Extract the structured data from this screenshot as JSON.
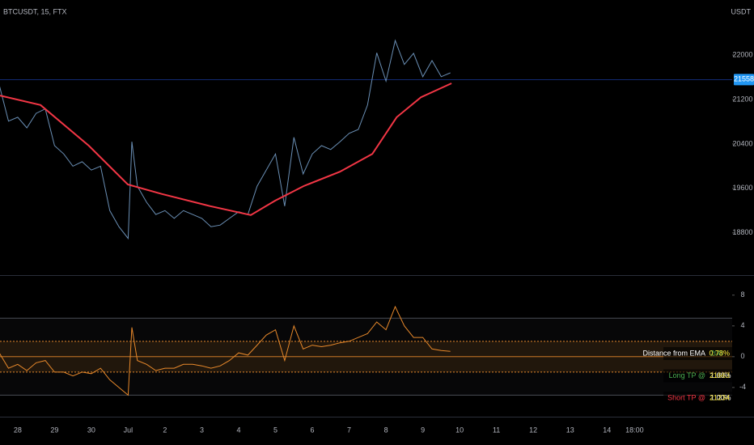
{
  "chart_data": [
    {
      "type": "line",
      "title": "BTCUSDT, 15, FTX",
      "y_axis_label": "USDT",
      "xlim": [
        -0.48,
        19.4
      ],
      "xticks": [
        {
          "value": 0,
          "label": "28"
        },
        {
          "value": 1,
          "label": "29"
        },
        {
          "value": 2,
          "label": "30"
        },
        {
          "value": 3,
          "label": "Jul"
        },
        {
          "value": 4,
          "label": "2"
        },
        {
          "value": 5,
          "label": "3"
        },
        {
          "value": 6,
          "label": "4"
        },
        {
          "value": 7,
          "label": "5"
        },
        {
          "value": 8,
          "label": "6"
        },
        {
          "value": 9,
          "label": "7"
        },
        {
          "value": 10,
          "label": "8"
        },
        {
          "value": 11,
          "label": "9"
        },
        {
          "value": 12,
          "label": "10"
        },
        {
          "value": 13,
          "label": "11"
        },
        {
          "value": 14,
          "label": "12"
        },
        {
          "value": 15,
          "label": "13"
        },
        {
          "value": 16,
          "label": "14"
        },
        {
          "value": 16.75,
          "label": "18:00"
        }
      ],
      "ylim": [
        18040,
        22990
      ],
      "yticks": [
        22000,
        21200,
        20400,
        19600,
        18800
      ],
      "last_price": 21558,
      "series": [
        {
          "color": "#6a8fb5",
          "x": [
            -0.5,
            -0.25,
            0,
            0.25,
            0.5,
            0.75,
            1,
            1.25,
            1.5,
            1.75,
            2,
            2.25,
            2.5,
            2.75,
            3,
            3.1,
            3.25,
            3.5,
            3.75,
            4,
            4.25,
            4.5,
            4.75,
            5,
            5.25,
            5.5,
            5.75,
            6,
            6.25,
            6.5,
            6.75,
            7,
            7.25,
            7.5,
            7.75,
            8,
            8.25,
            8.5,
            8.75,
            9,
            9.25,
            9.5,
            9.75,
            10,
            10.25,
            10.5,
            10.75,
            11,
            11.25,
            11.5,
            11.75
          ],
          "values": [
            21460,
            20810,
            20880,
            20690,
            20950,
            21030,
            20370,
            20220,
            20000,
            20080,
            19930,
            20000,
            19200,
            18910,
            18700,
            20440,
            19640,
            19350,
            19130,
            19200,
            19060,
            19200,
            19130,
            19060,
            18910,
            18940,
            19060,
            19180,
            19130,
            19640,
            19930,
            20220,
            19280,
            20520,
            19860,
            20220,
            20370,
            20300,
            20440,
            20590,
            20660,
            21100,
            22040,
            21530,
            22260,
            21830,
            22030,
            21610,
            21900,
            21610,
            21680
          ]
        },
        {
          "color": "#f23645",
          "x": [
            -0.48,
            0.62,
            1.93,
            2.99,
            3.91,
            5.23,
            6.33,
            6.99,
            7.76,
            8.75,
            9.63,
            10.29,
            10.95,
            11.78
          ],
          "values": [
            21270,
            21100,
            20370,
            19670,
            19500,
            19280,
            19120,
            19380,
            19640,
            19900,
            20220,
            20880,
            21240,
            21490
          ]
        }
      ]
    },
    {
      "type": "line",
      "ylim": [
        -7.8,
        10.5
      ],
      "yticks": [
        8,
        4,
        0,
        -4
      ],
      "bands": [
        5,
        2,
        -2,
        -5
      ],
      "series": [
        {
          "color": "#e8892b",
          "x": [
            -0.5,
            -0.25,
            0,
            0.25,
            0.5,
            0.75,
            1,
            1.25,
            1.5,
            1.75,
            2,
            2.25,
            2.5,
            2.75,
            3,
            3.1,
            3.25,
            3.5,
            3.75,
            4,
            4.25,
            4.5,
            4.75,
            5,
            5.25,
            5.5,
            5.75,
            6,
            6.25,
            6.5,
            6.75,
            7,
            7.25,
            7.5,
            7.75,
            8,
            8.25,
            8.5,
            8.75,
            9,
            9.25,
            9.5,
            9.75,
            10,
            10.25,
            10.5,
            10.75,
            11,
            11.25,
            11.5,
            11.75
          ],
          "values": [
            0.5,
            -1.5,
            -1,
            -1.8,
            -0.8,
            -0.5,
            -2,
            -2,
            -2.5,
            -2,
            -2.2,
            -1.5,
            -3,
            -4,
            -5,
            3.8,
            -0.5,
            -1,
            -1.8,
            -1.5,
            -1.5,
            -1,
            -1,
            -1.2,
            -1.5,
            -1.2,
            -0.5,
            0.5,
            0.2,
            1.5,
            2.8,
            3.5,
            -0.5,
            4,
            1,
            1.5,
            1.3,
            1.5,
            1.8,
            2,
            2.5,
            3,
            4.5,
            3.5,
            6.5,
            4,
            2.5,
            2.5,
            1,
            0.8,
            0.7
          ]
        }
      ],
      "table": [
        [
          "Distance from EMA",
          "200",
          "0.78%"
        ],
        [
          "Long TP @",
          "1.00%",
          "21663"
        ],
        [
          "Short TP @",
          "1.00%",
          "21234"
        ]
      ]
    }
  ]
}
